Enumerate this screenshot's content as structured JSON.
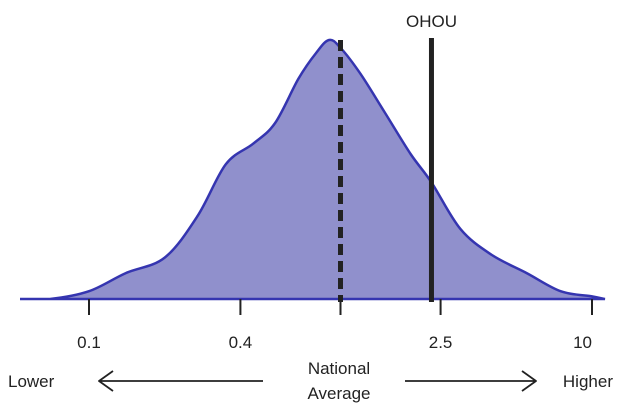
{
  "chart_data": {
    "type": "area",
    "x_scale": "log",
    "xlim": [
      0.045,
      12
    ],
    "x_ticks": [
      0.1,
      0.4,
      1,
      2.5,
      10
    ],
    "x_tick_labels": [
      "0.1",
      "0.4",
      "",
      "2.5",
      "10"
    ],
    "density": {
      "x": [
        0.045,
        0.07,
        0.1,
        0.14,
        0.2,
        0.27,
        0.35,
        0.45,
        0.55,
        0.68,
        0.8,
        0.9,
        1.0,
        1.2,
        1.5,
        1.9,
        2.3,
        3.0,
        4.0,
        5.5,
        7.5,
        10.0,
        12.0
      ],
      "y": [
        0.0,
        0.0,
        0.03,
        0.1,
        0.16,
        0.32,
        0.52,
        0.6,
        0.68,
        0.85,
        0.95,
        1.0,
        0.97,
        0.87,
        0.72,
        0.56,
        0.45,
        0.27,
        0.17,
        0.1,
        0.03,
        0.01,
        0.0
      ]
    },
    "reference_lines": [
      {
        "label": "",
        "x": 1.0,
        "style": "dashed"
      },
      {
        "label": "OHOU",
        "x": 2.3,
        "style": "solid"
      }
    ],
    "colors": {
      "fill": "#9090cc",
      "stroke": "#3535b0",
      "line": "#222222"
    },
    "annotations": {
      "lower": "Lower",
      "national_line1": "National",
      "national_line2": "Average",
      "higher": "Higher"
    }
  }
}
